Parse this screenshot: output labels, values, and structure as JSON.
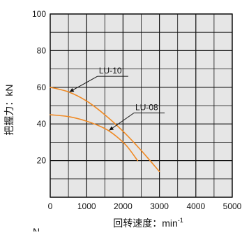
{
  "chart_data": {
    "type": "line",
    "xlabel": "回转速度：min",
    "xlabel_superscript": "-1",
    "ylabel": "把握力：kN",
    "corner_text": "N",
    "xlim": [
      0,
      5000
    ],
    "ylim": [
      0,
      100
    ],
    "x_ticks": [
      0,
      1000,
      2000,
      3000,
      4000,
      5000
    ],
    "y_ticks": [
      20,
      40,
      60,
      80,
      100
    ],
    "grid": true,
    "plot_background": "#e6e6e6",
    "series": [
      {
        "name": "LU-10",
        "color": "#f08a24",
        "x": [
          0,
          500,
          1000,
          1500,
          2000,
          2500,
          3000
        ],
        "y": [
          60,
          57.5,
          52.5,
          45,
          36,
          25.5,
          14
        ]
      },
      {
        "name": "LU-08",
        "color": "#f08a24",
        "x": [
          0,
          500,
          1000,
          1500,
          1800,
          2100,
          2400
        ],
        "y": [
          45,
          44,
          41.5,
          37.5,
          33.5,
          28,
          20
        ]
      }
    ],
    "annotations": [
      {
        "text": "LU-10",
        "series": "LU-10",
        "label_at": [
          1300,
          66
        ],
        "pointer_to": [
          530,
          57.5
        ]
      },
      {
        "text": "LU-08",
        "series": "LU-08",
        "label_at": [
          2300,
          46
        ],
        "pointer_to": [
          1620,
          36.5
        ]
      }
    ]
  }
}
